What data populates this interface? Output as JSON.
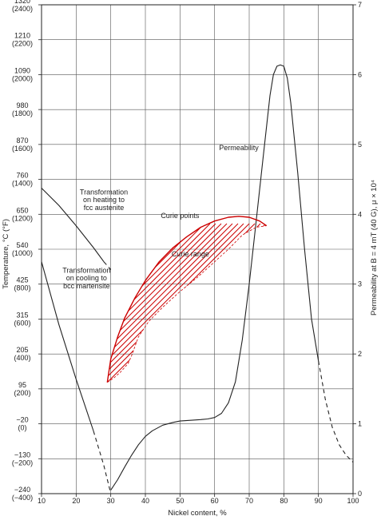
{
  "chart_data": {
    "type": "line",
    "xlabel": "Nickel content, %",
    "ylabel_left": "Temperature, °C (°F)",
    "ylabel_right": "Permeability at B = 4 mT (40 G), μ × 10⁴",
    "xlim": [
      10,
      100
    ],
    "x_ticks": [
      "10",
      "20",
      "30",
      "40",
      "50",
      "60",
      "70",
      "80",
      "90",
      "100"
    ],
    "ylim_left_c": [
      -240,
      1320
    ],
    "ylim_right": [
      0,
      7
    ],
    "y_ticks_left": [
      {
        "c": "1320",
        "f": "(2400)"
      },
      {
        "c": "1210",
        "f": "(2200)"
      },
      {
        "c": "1090",
        "f": "(2000)"
      },
      {
        "c": "980",
        "f": "(1800)"
      },
      {
        "c": "870",
        "f": "(1600)"
      },
      {
        "c": "760",
        "f": "(1400)"
      },
      {
        "c": "650",
        "f": "(1200)"
      },
      {
        "c": "540",
        "f": "(1000)"
      },
      {
        "c": "425",
        "f": "(800)"
      },
      {
        "c": "315",
        "f": "(600)"
      },
      {
        "c": "205",
        "f": "(400)"
      },
      {
        "c": "95",
        "f": "(200)"
      },
      {
        "c": "−20",
        "f": "(0)"
      },
      {
        "c": "−130",
        "f": "(−200)"
      },
      {
        "c": "−240",
        "f": "(−400)"
      }
    ],
    "y_ticks_right": [
      "7",
      "6",
      "5",
      "4",
      "3",
      "2",
      "1",
      "0"
    ],
    "grid": true,
    "series": [
      {
        "name": "Permeability",
        "axis": "right",
        "color": "#222222",
        "x": [
          30,
          32,
          34,
          36,
          38,
          40,
          42,
          45,
          48,
          50,
          53,
          56,
          58,
          60,
          62,
          64,
          66,
          68,
          70,
          72,
          74,
          76,
          77,
          78,
          79,
          80,
          81,
          82,
          84,
          86,
          88,
          90
        ],
        "y": [
          0.05,
          0.2,
          0.38,
          0.55,
          0.7,
          0.82,
          0.9,
          0.98,
          1.02,
          1.04,
          1.05,
          1.06,
          1.07,
          1.09,
          1.15,
          1.3,
          1.6,
          2.2,
          3.0,
          3.9,
          4.8,
          5.7,
          6.0,
          6.12,
          6.14,
          6.12,
          5.95,
          5.6,
          4.6,
          3.5,
          2.5,
          1.9
        ]
      },
      {
        "name": "Permeability (dashed)",
        "axis": "right",
        "color": "#222222",
        "dashed": true,
        "x": [
          90,
          92,
          94,
          96,
          98,
          100
        ],
        "y": [
          1.9,
          1.35,
          0.95,
          0.7,
          0.55,
          0.45
        ]
      },
      {
        "name": "Transformation on heating to fcc austenite",
        "axis": "left",
        "color": "#222222",
        "x": [
          10,
          15,
          20,
          25,
          28
        ],
        "y": [
          735,
          680,
          615,
          545,
          500
        ]
      },
      {
        "name": "Transformation on heating (dashed)",
        "axis": "left",
        "color": "#222222",
        "dashed": true,
        "x": [
          28,
          30
        ],
        "y": [
          500,
          475
        ]
      },
      {
        "name": "Transformation on cooling to bcc martensite",
        "axis": "left",
        "color": "#222222",
        "x": [
          10,
          15,
          20,
          25
        ],
        "y": [
          500,
          300,
          125,
          -40
        ]
      },
      {
        "name": "Transformation on cooling (dashed)",
        "axis": "left",
        "color": "#222222",
        "dashed": true,
        "x": [
          25,
          28,
          30
        ],
        "y": [
          -40,
          -150,
          -240
        ]
      },
      {
        "name": "Curie points",
        "axis": "left",
        "color": "#cc0000",
        "x": [
          29,
          30,
          32,
          34,
          37,
          40,
          44,
          48,
          52,
          56,
          60,
          64,
          67,
          70,
          73,
          75
        ],
        "y": [
          115,
          190,
          260,
          320,
          385,
          440,
          500,
          545,
          580,
          610,
          630,
          642,
          645,
          642,
          630,
          615
        ]
      },
      {
        "name": "Curie range",
        "axis": "left",
        "color": "#cc0000",
        "hatched": true,
        "upper_x": [
          29,
          30,
          32,
          34,
          37,
          40,
          44,
          48,
          52,
          56,
          60,
          64,
          67,
          70,
          73,
          75
        ],
        "upper_y": [
          115,
          190,
          260,
          320,
          385,
          440,
          500,
          545,
          580,
          610,
          630,
          642,
          645,
          642,
          630,
          615
        ],
        "lower_x": [
          29,
          31,
          33,
          35,
          36,
          38,
          41,
          45,
          50,
          55,
          60,
          64,
          68,
          72,
          75
        ],
        "lower_y": [
          115,
          130,
          150,
          175,
          200,
          260,
          310,
          355,
          405,
          450,
          500,
          540,
          585,
          610,
          615
        ]
      }
    ],
    "annotations": [
      {
        "text": "Permeability",
        "x": 67,
        "y_right": 4.92
      },
      {
        "text": "Transformation",
        "x": 28,
        "y_left": 715
      },
      {
        "text": "on heating to",
        "x": 28,
        "y_left": 690
      },
      {
        "text": "fcc austenite",
        "x": 28,
        "y_left": 665
      },
      {
        "text": "Transformation",
        "x": 23,
        "y_left": 465
      },
      {
        "text": "on cooling to",
        "x": 23,
        "y_left": 440
      },
      {
        "text": "bcc martensite",
        "x": 23,
        "y_left": 415
      },
      {
        "text": "Curie points",
        "x": 50,
        "y_left": 640,
        "color": "#cc0000"
      },
      {
        "text": "Curie range",
        "x": 53,
        "y_left": 517,
        "color": "#cc0000"
      }
    ]
  }
}
